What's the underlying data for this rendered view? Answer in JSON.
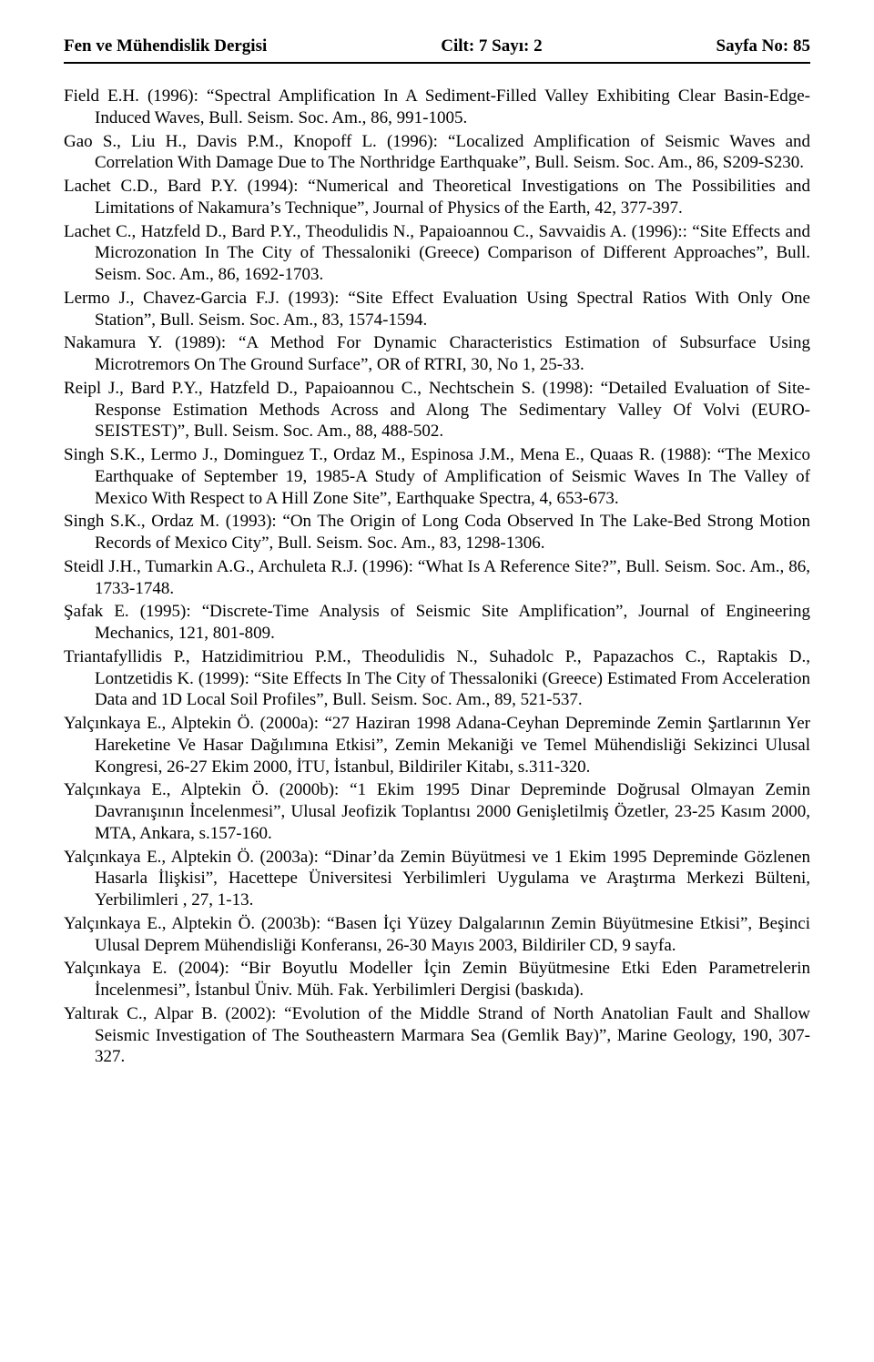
{
  "header": {
    "left": "Fen ve Mühendislik Dergisi",
    "center": "Cilt: 7  Sayı: 2",
    "right": "Sayfa No: 85"
  },
  "references": [
    "Field E.H. (1996): “Spectral Amplification In A Sediment-Filled Valley Exhibiting Clear Basin-Edge-Induced Waves, Bull. Seism. Soc. Am., 86, 991-1005.",
    "Gao S., Liu H., Davis P.M., Knopoff L. (1996): “Localized Amplification of Seismic Waves and Correlation With Damage Due to The Northridge Earthquake”, Bull. Seism. Soc. Am., 86, S209-S230.",
    "Lachet C.D., Bard P.Y. (1994): “Numerical and Theoretical Investigations on The Possibilities and Limitations of Nakamura’s Technique”, Journal of Physics of the Earth, 42, 377-397.",
    "Lachet C., Hatzfeld D., Bard P.Y., Theodulidis N., Papaioannou C., Savvaidis A. (1996):: “Site Effects and Microzonation In The City of Thessaloniki (Greece) Comparison of Different Approaches”, Bull. Seism. Soc. Am., 86, 1692-1703.",
    "Lermo J., Chavez-Garcia F.J. (1993): “Site Effect Evaluation Using Spectral Ratios With Only One Station”, Bull. Seism. Soc. Am., 83, 1574-1594.",
    "Nakamura Y. (1989): “A Method For Dynamic Characteristics Estimation of Subsurface Using Microtremors On The Ground Surface”, OR of RTRI, 30, No 1, 25-33.",
    "Reipl J., Bard P.Y., Hatzfeld D., Papaioannou C., Nechtschein S. (1998): “Detailed Evaluation of Site-Response Estimation Methods Across and Along The Sedimentary Valley Of Volvi (EURO-SEISTEST)”, Bull. Seism. Soc. Am., 88, 488-502.",
    "Singh S.K., Lermo J., Dominguez T., Ordaz M., Espinosa J.M., Mena E., Quaas R. (1988): “The Mexico Earthquake of September 19, 1985-A Study of Amplification of Seismic Waves In The Valley of Mexico With Respect to A Hill Zone Site”, Earthquake Spectra, 4, 653-673.",
    "Singh S.K., Ordaz M. (1993): “On The Origin of Long Coda Observed In The Lake-Bed Strong Motion Records of Mexico City”, Bull. Seism. Soc. Am., 83, 1298-1306.",
    "Steidl J.H., Tumarkin A.G., Archuleta R.J. (1996): “What Is A Reference Site?”, Bull. Seism. Soc. Am., 86, 1733-1748.",
    "Şafak E. (1995): “Discrete-Time Analysis of Seismic Site Amplification”, Journal of Engineering Mechanics, 121, 801-809.",
    "Triantafyllidis P., Hatzidimitriou P.M., Theodulidis N., Suhadolc P., Papazachos C., Raptakis D., Lontzetidis K. (1999): “Site Effects In The City of Thessaloniki (Greece) Estimated From Acceleration Data and 1D Local Soil Profiles”, Bull. Seism. Soc. Am., 89, 521-537.",
    "Yalçınkaya E., Alptekin Ö. (2000a): “27 Haziran 1998 Adana-Ceyhan Depreminde Zemin Şartlarının Yer Hareketine Ve Hasar Dağılımına Etkisi”, Zemin Mekaniği ve Temel Mühendisliği Sekizinci Ulusal Kongresi, 26-27 Ekim 2000, İTU, İstanbul, Bildiriler Kitabı, s.311-320.",
    "Yalçınkaya E., Alptekin Ö. (2000b): “1 Ekim 1995 Dinar Depreminde Doğrusal Olmayan Zemin Davranışının İncelenmesi”, Ulusal Jeofizik Toplantısı 2000 Genişletilmiş Özetler, 23-25 Kasım 2000, MTA, Ankara, s.157-160.",
    "Yalçınkaya E., Alptekin Ö. (2003a): “Dinar’da Zemin Büyütmesi ve 1 Ekim 1995 Depreminde Gözlenen Hasarla İlişkisi”, Hacettepe Üniversitesi Yerbilimleri Uygulama ve Araştırma Merkezi Bülteni, Yerbilimleri , 27, 1-13.",
    "Yalçınkaya E., Alptekin Ö. (2003b): “Basen İçi Yüzey Dalgalarının Zemin Büyütmesine Etkisi”, Beşinci Ulusal Deprem Mühendisliği Konferansı, 26-30 Mayıs 2003, Bildiriler CD, 9 sayfa.",
    "Yalçınkaya E. (2004): “Bir Boyutlu Modeller İçin Zemin Büyütmesine Etki Eden Parametrelerin İncelenmesi”, İstanbul Üniv. Müh. Fak. Yerbilimleri Dergisi (baskıda).",
    "Yaltırak C., Alpar B. (2002): “Evolution of the Middle Strand of North Anatolian Fault and Shallow Seismic Investigation of The Southeastern Marmara Sea (Gemlik Bay)”, Marine Geology, 190, 307-327."
  ]
}
